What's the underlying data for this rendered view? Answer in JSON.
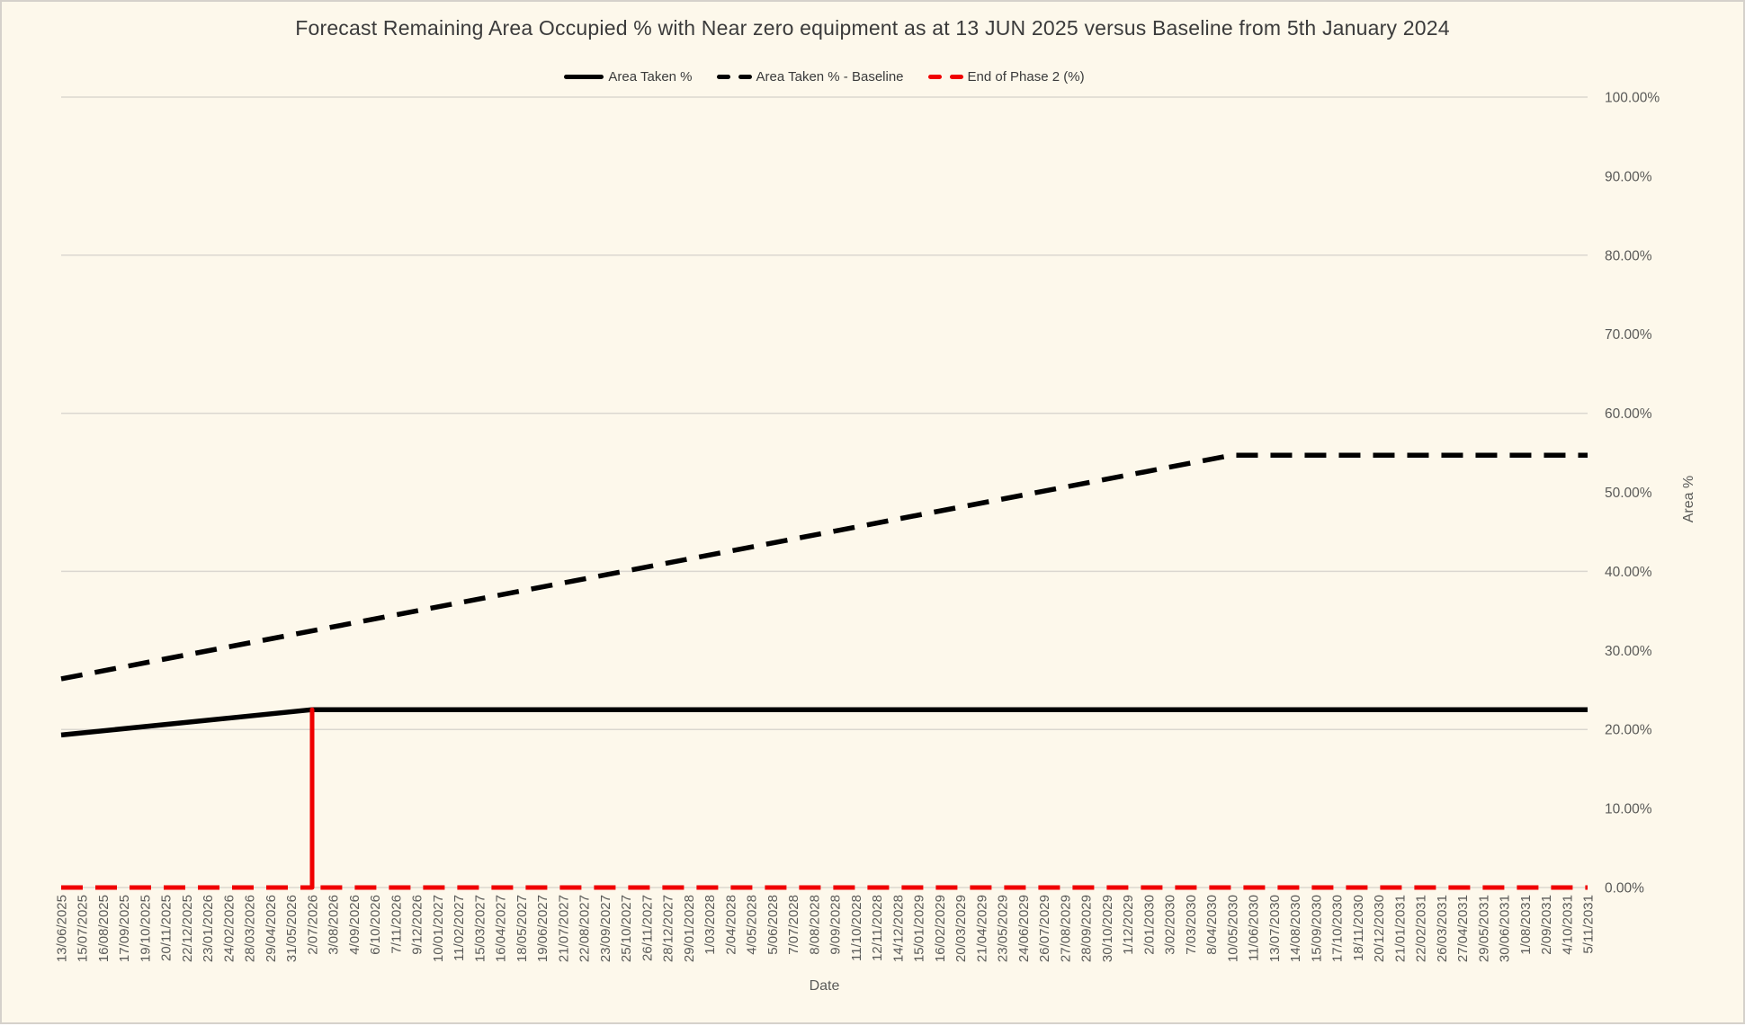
{
  "chart_data": {
    "type": "line",
    "title": "Forecast Remaining Area Occupied % with Near zero equipment as at 13 JUN 2025 versus Baseline from 5th January 2024",
    "xlabel": "Date",
    "ylabel": "Area %",
    "ylim": [
      0,
      100
    ],
    "grid": "horizontal",
    "legend_position": "top",
    "gridline_values": [
      0,
      20,
      40,
      60,
      80,
      100
    ],
    "y_ticks": [
      {
        "value": 0,
        "label": "0.00%"
      },
      {
        "value": 10,
        "label": "10.00%"
      },
      {
        "value": 20,
        "label": "20.00%"
      },
      {
        "value": 30,
        "label": "30.00%"
      },
      {
        "value": 40,
        "label": "40.00%"
      },
      {
        "value": 50,
        "label": "50.00%"
      },
      {
        "value": 60,
        "label": "60.00%"
      },
      {
        "value": 70,
        "label": "70.00%"
      },
      {
        "value": 80,
        "label": "80.00%"
      },
      {
        "value": 90,
        "label": "90.00%"
      },
      {
        "value": 100,
        "label": "100.00%"
      }
    ],
    "categories": [
      "13/06/2025",
      "15/07/2025",
      "16/08/2025",
      "17/09/2025",
      "19/10/2025",
      "20/11/2025",
      "22/12/2025",
      "23/01/2026",
      "24/02/2026",
      "28/03/2026",
      "29/04/2026",
      "31/05/2026",
      "2/07/2026",
      "3/08/2026",
      "4/09/2026",
      "6/10/2026",
      "7/11/2026",
      "9/12/2026",
      "10/01/2027",
      "11/02/2027",
      "15/03/2027",
      "16/04/2027",
      "18/05/2027",
      "19/06/2027",
      "21/07/2027",
      "22/08/2027",
      "23/09/2027",
      "25/10/2027",
      "26/11/2027",
      "28/12/2027",
      "29/01/2028",
      "1/03/2028",
      "2/04/2028",
      "4/05/2028",
      "5/06/2028",
      "7/07/2028",
      "8/08/2028",
      "9/09/2028",
      "11/10/2028",
      "12/11/2028",
      "14/12/2028",
      "15/01/2029",
      "16/02/2029",
      "20/03/2029",
      "21/04/2029",
      "23/05/2029",
      "24/06/2029",
      "26/07/2029",
      "27/08/2029",
      "28/09/2029",
      "30/10/2029",
      "1/12/2029",
      "2/01/2030",
      "3/02/2030",
      "7/03/2030",
      "8/04/2030",
      "10/05/2030",
      "11/06/2030",
      "13/07/2030",
      "14/08/2030",
      "15/09/2030",
      "17/10/2030",
      "18/11/2030",
      "20/12/2030",
      "21/01/2031",
      "22/02/2031",
      "26/03/2031",
      "27/04/2031",
      "29/05/2031",
      "30/06/2031",
      "1/08/2031",
      "2/09/2031",
      "4/10/2031",
      "5/11/2031"
    ],
    "series": [
      {
        "name": "Area Taken %",
        "color": "#000000",
        "line_style": "solid",
        "stroke_width": 5.5,
        "anchors": [
          {
            "x": "13/06/2025",
            "y": 19.3
          },
          {
            "x": "2/07/2026",
            "y": 22.5
          },
          {
            "x": "5/11/2031",
            "y": 22.5
          }
        ]
      },
      {
        "name": "Area Taken % - Baseline",
        "color": "#000000",
        "line_style": "dashed",
        "stroke_width": 5.5,
        "anchors": [
          {
            "x": "13/06/2025",
            "y": 26.4
          },
          {
            "x": "10/05/2030",
            "y": 54.7
          },
          {
            "x": "5/11/2031",
            "y": 54.7
          }
        ]
      },
      {
        "name": "End of Phase 2 (%)",
        "color": "#F00000",
        "line_style": "dashed",
        "stroke_width": 5,
        "anchors": [
          {
            "x": "13/06/2025",
            "y": 0
          },
          {
            "x": "2/07/2026",
            "y": 0
          },
          {
            "x": "2/07/2026",
            "y": 22.5
          },
          {
            "x": "2/07/2026",
            "y": 0
          },
          {
            "x": "5/11/2031",
            "y": 0
          }
        ]
      }
    ]
  },
  "colors": {
    "background": "#FDF8EB",
    "border": "#D5D1CB",
    "gridline": "#DBD7D0",
    "axis_text": "#5A5A58",
    "title_text": "#3B3B3B",
    "series_black": "#000000",
    "series_red": "#F00000"
  }
}
